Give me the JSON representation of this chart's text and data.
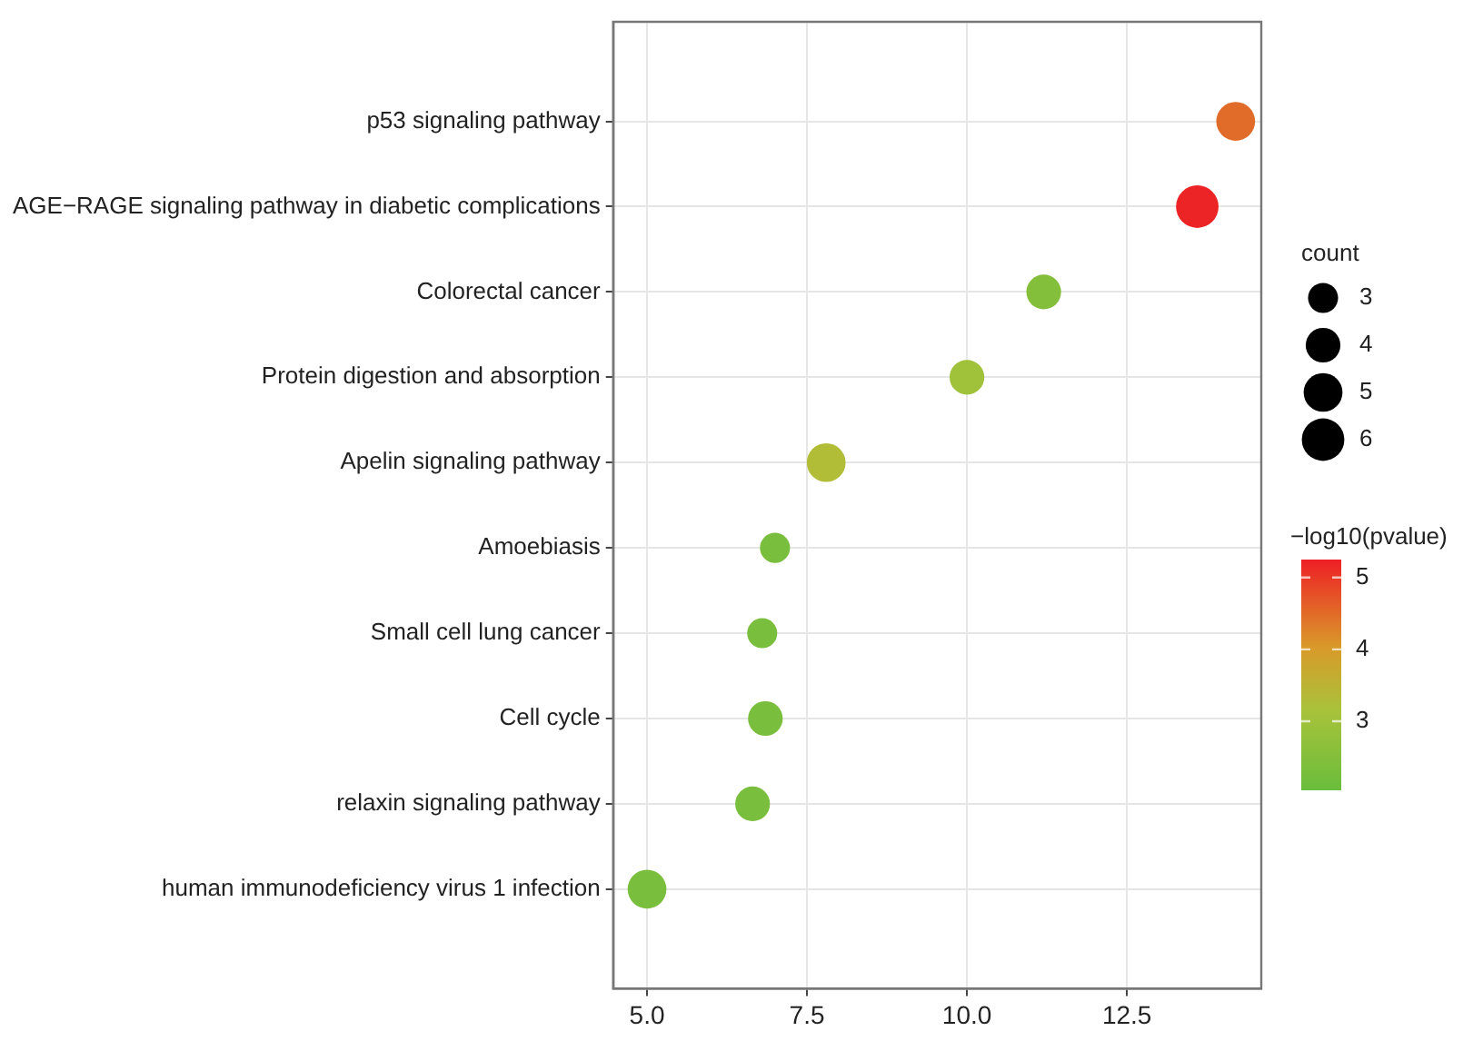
{
  "chart_data": {
    "type": "bubble",
    "orientation": "horizontal",
    "categories": [
      "p53 signaling pathway",
      "AGE−RAGE signaling pathway in diabetic complications",
      "Colorectal cancer",
      "Protein digestion and absorption",
      "Apelin signaling pathway",
      "Amoebiasis",
      "Small cell lung cancer",
      "Cell cycle",
      "relaxin signaling pathway",
      "human immunodeficiency virus 1 infection"
    ],
    "values": [
      14.2,
      13.6,
      11.2,
      10.0,
      7.8,
      7.0,
      6.8,
      6.85,
      6.65,
      5.0
    ],
    "sizes": [
      5,
      6,
      4,
      4,
      5,
      3,
      3,
      4,
      4,
      5
    ],
    "cvalues": [
      4.5,
      5.2,
      2.5,
      3.0,
      3.3,
      2.3,
      2.3,
      2.3,
      2.3,
      2.3
    ],
    "size_legend": [
      3,
      4,
      5,
      6
    ],
    "legend_title": "count",
    "clabel": "−log10(pvalue)",
    "clim": [
      2.04,
      5.25
    ],
    "cticks": [
      3,
      4,
      5
    ],
    "xlim": [
      4.47,
      14.6
    ],
    "xticks": [
      {
        "value": 5,
        "label": "5.0"
      },
      {
        "value": 7.5,
        "label": "7.5"
      },
      {
        "value": 10,
        "label": "10.0"
      },
      {
        "value": 12.5,
        "label": "12.5"
      }
    ],
    "grid": true
  }
}
